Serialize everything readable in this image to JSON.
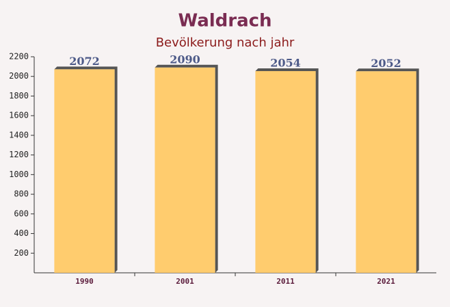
{
  "chart_data": {
    "type": "bar",
    "title": "Waldrach",
    "subtitle": "Bevölkerung nach jahr",
    "categories": [
      "1990",
      "2001",
      "2011",
      "2021"
    ],
    "values": [
      2072,
      2090,
      2054,
      2052
    ],
    "color": "#ffc966",
    "ylim": [
      0,
      2200
    ],
    "yticks": [
      200,
      400,
      600,
      800,
      1000,
      1200,
      1400,
      1600,
      1800,
      2000,
      2200
    ]
  }
}
